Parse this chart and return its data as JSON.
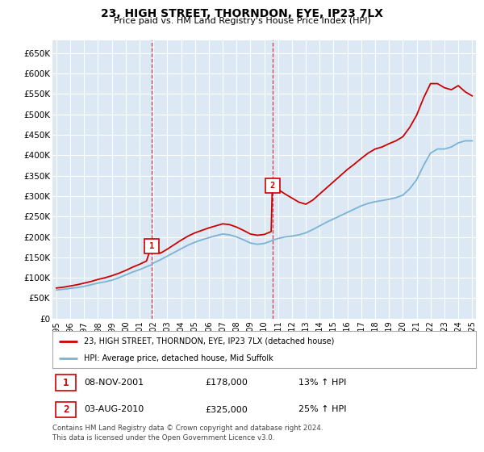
{
  "title": "23, HIGH STREET, THORNDON, EYE, IP23 7LX",
  "subtitle": "Price paid vs. HM Land Registry's House Price Index (HPI)",
  "ylabel_ticks": [
    "£0",
    "£50K",
    "£100K",
    "£150K",
    "£200K",
    "£250K",
    "£300K",
    "£350K",
    "£400K",
    "£450K",
    "£500K",
    "£550K",
    "£600K",
    "£650K"
  ],
  "ytick_values": [
    0,
    50000,
    100000,
    150000,
    200000,
    250000,
    300000,
    350000,
    400000,
    450000,
    500000,
    550000,
    600000,
    650000
  ],
  "ylim": [
    0,
    680000
  ],
  "xlim_start": 1994.7,
  "xlim_end": 2025.3,
  "background_color": "#dce9f5",
  "grid_color": "#ffffff",
  "red_line_color": "#cc0000",
  "blue_line_color": "#7ab3d4",
  "sale1_x": 2001.86,
  "sale1_y": 178000,
  "sale1_label": "1",
  "sale1_date": "08-NOV-2001",
  "sale1_price": "£178,000",
  "sale1_hpi": "13% ↑ HPI",
  "sale2_x": 2010.58,
  "sale2_y": 325000,
  "sale2_label": "2",
  "sale2_date": "03-AUG-2010",
  "sale2_price": "£325,000",
  "sale2_hpi": "25% ↑ HPI",
  "legend_line1": "23, HIGH STREET, THORNDON, EYE, IP23 7LX (detached house)",
  "legend_line2": "HPI: Average price, detached house, Mid Suffolk",
  "footnote": "Contains HM Land Registry data © Crown copyright and database right 2024.\nThis data is licensed under the Open Government Licence v3.0.",
  "hpi_x": [
    1995.0,
    1995.5,
    1996.0,
    1996.5,
    1997.0,
    1997.5,
    1998.0,
    1998.5,
    1999.0,
    1999.5,
    2000.0,
    2000.5,
    2001.0,
    2001.5,
    2001.86,
    2002.0,
    2002.5,
    2003.0,
    2003.5,
    2004.0,
    2004.5,
    2005.0,
    2005.5,
    2006.0,
    2006.5,
    2007.0,
    2007.5,
    2008.0,
    2008.5,
    2009.0,
    2009.5,
    2010.0,
    2010.5,
    2010.58,
    2011.0,
    2011.5,
    2012.0,
    2012.5,
    2013.0,
    2013.5,
    2014.0,
    2014.5,
    2015.0,
    2015.5,
    2016.0,
    2016.5,
    2017.0,
    2017.5,
    2018.0,
    2018.5,
    2019.0,
    2019.5,
    2020.0,
    2020.5,
    2021.0,
    2021.5,
    2022.0,
    2022.5,
    2023.0,
    2023.5,
    2024.0,
    2024.5,
    2025.0
  ],
  "hpi_y": [
    70000,
    72000,
    74000,
    76000,
    79000,
    83000,
    87000,
    90000,
    94000,
    100000,
    107000,
    114000,
    120000,
    127000,
    132000,
    136000,
    144000,
    153000,
    162000,
    171000,
    180000,
    187000,
    193000,
    198000,
    203000,
    207000,
    205000,
    200000,
    193000,
    185000,
    182000,
    184000,
    190000,
    192000,
    196000,
    200000,
    202000,
    205000,
    210000,
    218000,
    227000,
    236000,
    244000,
    252000,
    260000,
    268000,
    276000,
    282000,
    286000,
    289000,
    292000,
    296000,
    302000,
    318000,
    340000,
    375000,
    405000,
    415000,
    415000,
    420000,
    430000,
    435000,
    435000
  ],
  "red_x": [
    1995.0,
    1995.5,
    1996.0,
    1996.5,
    1997.0,
    1997.5,
    1998.0,
    1998.5,
    1999.0,
    1999.5,
    2000.0,
    2000.5,
    2001.0,
    2001.5,
    2001.86,
    2002.0,
    2002.5,
    2003.0,
    2003.5,
    2004.0,
    2004.5,
    2005.0,
    2005.5,
    2006.0,
    2006.5,
    2007.0,
    2007.5,
    2008.0,
    2008.5,
    2009.0,
    2009.5,
    2010.0,
    2010.5,
    2010.58,
    2011.0,
    2011.5,
    2012.0,
    2012.5,
    2013.0,
    2013.5,
    2014.0,
    2014.5,
    2015.0,
    2015.5,
    2016.0,
    2016.5,
    2017.0,
    2017.5,
    2018.0,
    2018.5,
    2019.0,
    2019.5,
    2020.0,
    2020.5,
    2021.0,
    2021.5,
    2022.0,
    2022.5,
    2023.0,
    2023.5,
    2024.0,
    2024.5,
    2025.0
  ],
  "red_y": [
    75000,
    77000,
    80000,
    83000,
    87000,
    91000,
    96000,
    100000,
    105000,
    111000,
    118000,
    126000,
    133000,
    141000,
    178000,
    172000,
    160000,
    170000,
    181000,
    192000,
    202000,
    210000,
    216000,
    222000,
    227000,
    232000,
    230000,
    224000,
    216000,
    207000,
    204000,
    206000,
    213000,
    325000,
    316000,
    305000,
    295000,
    285000,
    280000,
    290000,
    305000,
    320000,
    335000,
    350000,
    365000,
    378000,
    392000,
    405000,
    415000,
    420000,
    428000,
    435000,
    445000,
    468000,
    498000,
    540000,
    575000,
    575000,
    565000,
    560000,
    570000,
    555000,
    545000
  ]
}
